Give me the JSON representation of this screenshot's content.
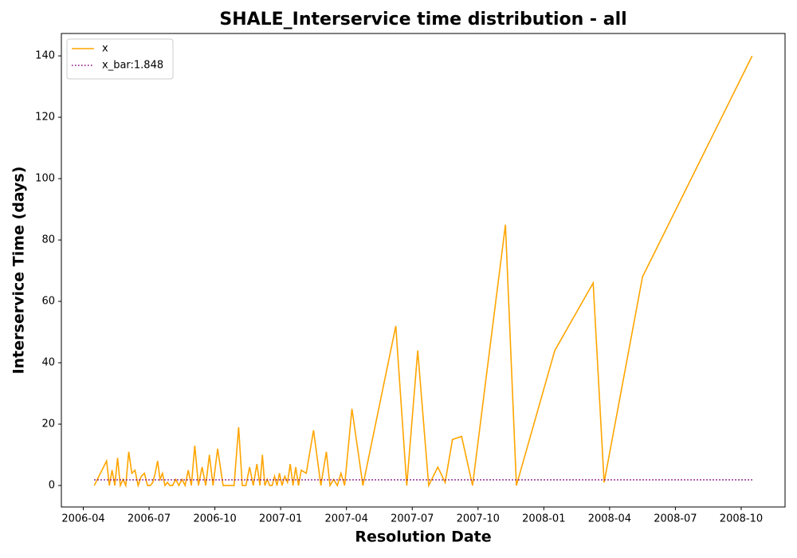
{
  "chart_data": {
    "type": "line",
    "title": "SHALE_Interservice time distribution - all",
    "x_label": "Resolution Date",
    "y_label": "Interservice Time (days)",
    "x": [
      "2006-04",
      "2006-05",
      "2006-05",
      "2006-05",
      "2006-05",
      "2006-05",
      "2006-05",
      "2006-05",
      "2006-05",
      "2006-06",
      "2006-06",
      "2006-06",
      "2006-06",
      "2006-06",
      "2006-06",
      "2006-06",
      "2006-07",
      "2006-07",
      "2006-07",
      "2006-07",
      "2006-07",
      "2006-07",
      "2006-07",
      "2006-07",
      "2006-07",
      "2006-08",
      "2006-08",
      "2006-08",
      "2006-08",
      "2006-08",
      "2006-08",
      "2006-08",
      "2006-09",
      "2006-09",
      "2006-09",
      "2006-09",
      "2006-09",
      "2006-09",
      "2006-10",
      "2006-10",
      "2006-10",
      "2006-10",
      "2006-11",
      "2006-11",
      "2006-11",
      "2006-11",
      "2006-11",
      "2006-11",
      "2006-12",
      "2006-12",
      "2006-12",
      "2006-12",
      "2006-12",
      "2006-12",
      "2006-12",
      "2006-12",
      "2006-12",
      "2007-01",
      "2007-01",
      "2007-01",
      "2007-01",
      "2007-01",
      "2007-01",
      "2007-01",
      "2007-01",
      "2007-02",
      "2007-02",
      "2007-02",
      "2007-03",
      "2007-03",
      "2007-03",
      "2007-03",
      "2007-03",
      "2007-03",
      "2007-04",
      "2007-04",
      "2007-06",
      "2007-06",
      "2007-07",
      "2007-07",
      "2007-08",
      "2007-08",
      "2007-08",
      "2007-09",
      "2007-09",
      "2007-11",
      "2007-11",
      "2008-01",
      "2008-03",
      "2008-03",
      "2008-05",
      "2008-10"
    ],
    "series": [
      {
        "name": "x",
        "color": "orange",
        "values": [
          0,
          8,
          0,
          5,
          0,
          9,
          0,
          2,
          0,
          11,
          4,
          5,
          0,
          3,
          4,
          0,
          0,
          1,
          4,
          8,
          2,
          4,
          0,
          1,
          0,
          0,
          2,
          0,
          2,
          0,
          5,
          0,
          13,
          0,
          6,
          0,
          10,
          0,
          12,
          0,
          0,
          0,
          19,
          0,
          0,
          6,
          0,
          7,
          0,
          10,
          0,
          2,
          0,
          0,
          3,
          0,
          4,
          0,
          3,
          1,
          7,
          0,
          6,
          0,
          5,
          4,
          18,
          0,
          11,
          0,
          2,
          0,
          4,
          0,
          25,
          0,
          52,
          0,
          44,
          0,
          6,
          1,
          15,
          16,
          0,
          85,
          0,
          44,
          66,
          1,
          68,
          140
        ]
      }
    ],
    "hline": {
      "name": "x_bar:1.848",
      "value": 1.848,
      "color": "purple"
    },
    "xlim": [
      "2006-03",
      "2008-12"
    ],
    "xticks": [
      "2006-04",
      "2006-07",
      "2006-10",
      "2007-01",
      "2007-04",
      "2007-07",
      "2007-10",
      "2008-01",
      "2008-04",
      "2008-07",
      "2008-10"
    ],
    "ylim": [
      -7,
      147.3
    ],
    "yticks": [
      0,
      20,
      40,
      60,
      80,
      100,
      120,
      140
    ],
    "legend": "upper left"
  }
}
